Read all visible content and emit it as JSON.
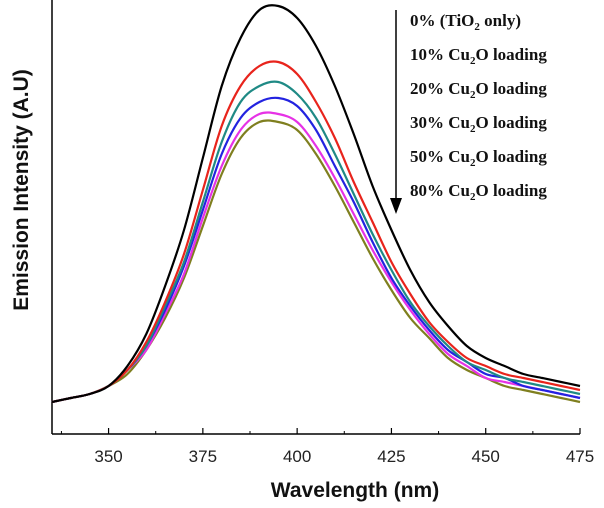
{
  "chart_data": {
    "type": "line",
    "title": "",
    "xlabel": "Wavelength (nm)",
    "ylabel": "Emission Intensity (A.U)",
    "xlim": [
      335,
      475
    ],
    "ylim": [
      0,
      100
    ],
    "xticks": [
      350,
      375,
      400,
      425,
      450,
      475
    ],
    "yticks_shown": false,
    "legend_position": "top-right",
    "legend_arrow": "downward",
    "series": [
      {
        "name": "0% (TiO2 only)",
        "label_main": "0% (TiO",
        "label_sub": "2",
        "label_tail": " only)",
        "color": "#000000",
        "x": [
          335,
          340,
          345,
          350,
          355,
          360,
          365,
          370,
          375,
          380,
          385,
          390,
          395,
          400,
          405,
          410,
          415,
          420,
          425,
          430,
          435,
          440,
          445,
          450,
          455,
          460,
          465,
          470,
          475
        ],
        "y": [
          1,
          2,
          3,
          5,
          10,
          18,
          30,
          44,
          62,
          80,
          92,
          99,
          100,
          97,
          90,
          80,
          68,
          55,
          44,
          34,
          26,
          20,
          15,
          12,
          10,
          8,
          7,
          6,
          5
        ]
      },
      {
        "name": "10% Cu2O loading",
        "label_main": "10% Cu",
        "label_sub": "2",
        "label_tail": "O loading",
        "color": "#e8241c",
        "x": [
          335,
          340,
          345,
          350,
          355,
          360,
          365,
          370,
          375,
          380,
          385,
          390,
          395,
          400,
          405,
          410,
          415,
          420,
          425,
          430,
          435,
          440,
          445,
          450,
          455,
          460,
          465,
          470,
          475
        ],
        "y": [
          1,
          2,
          3,
          5,
          9,
          16,
          26,
          38,
          54,
          70,
          80,
          85,
          86,
          83,
          76,
          67,
          56,
          46,
          36,
          28,
          21,
          16,
          12,
          10,
          8,
          7,
          6,
          5,
          4
        ]
      },
      {
        "name": "20% Cu2O loading",
        "label_main": "20% Cu",
        "label_sub": "2",
        "label_tail": "O loading",
        "color": "#1f8a85",
        "x": [
          335,
          340,
          345,
          350,
          355,
          360,
          365,
          370,
          375,
          380,
          385,
          390,
          395,
          400,
          405,
          410,
          415,
          420,
          425,
          430,
          435,
          440,
          445,
          450,
          455,
          460,
          465,
          470,
          475
        ],
        "y": [
          1,
          2,
          3,
          5,
          9,
          15,
          25,
          36,
          51,
          66,
          76,
          80,
          81,
          78,
          72,
          63,
          53,
          43,
          34,
          26,
          20,
          15,
          11,
          9,
          7,
          6,
          5,
          4,
          3
        ]
      },
      {
        "name": "30% Cu2O loading",
        "label_main": "30% Cu",
        "label_sub": "2",
        "label_tail": "O loading",
        "color": "#2323e0",
        "x": [
          335,
          340,
          345,
          350,
          355,
          360,
          365,
          370,
          375,
          380,
          385,
          390,
          395,
          400,
          405,
          410,
          415,
          420,
          425,
          430,
          435,
          440,
          445,
          450,
          455,
          460,
          465,
          470,
          475
        ],
        "y": [
          1,
          2,
          3,
          5,
          9,
          15,
          24,
          35,
          49,
          63,
          72,
          76,
          77,
          75,
          69,
          60,
          51,
          41,
          32,
          25,
          19,
          14,
          11,
          8,
          7,
          5,
          4,
          3,
          2
        ]
      },
      {
        "name": "50% Cu2O loading",
        "label_main": "50% Cu",
        "label_sub": "2",
        "label_tail": "O loading",
        "color": "#e632e6",
        "x": [
          335,
          340,
          345,
          350,
          355,
          360,
          365,
          370,
          375,
          380,
          385,
          390,
          395,
          400,
          405,
          410,
          415,
          420,
          425,
          430,
          435,
          440,
          445,
          450,
          455,
          460,
          465,
          470,
          475
        ],
        "y": [
          1,
          2,
          3,
          5,
          9,
          14,
          23,
          33,
          47,
          60,
          69,
          73,
          73,
          71,
          65,
          57,
          48,
          39,
          31,
          24,
          18,
          13,
          10,
          7,
          6,
          5,
          4,
          3,
          2
        ]
      },
      {
        "name": "80% Cu2O loading",
        "label_main": "80% Cu",
        "label_sub": "2",
        "label_tail": "O loading",
        "color": "#7f7f1f",
        "x": [
          335,
          340,
          345,
          350,
          355,
          360,
          365,
          370,
          375,
          380,
          385,
          390,
          395,
          400,
          405,
          410,
          415,
          420,
          425,
          430,
          435,
          440,
          445,
          450,
          455,
          460,
          465,
          470,
          475
        ],
        "y": [
          1,
          2,
          3,
          5,
          8,
          14,
          22,
          32,
          45,
          58,
          67,
          71,
          71,
          69,
          63,
          55,
          46,
          37,
          29,
          22,
          17,
          12,
          9,
          7,
          5,
          4,
          3,
          2,
          1
        ]
      }
    ]
  }
}
